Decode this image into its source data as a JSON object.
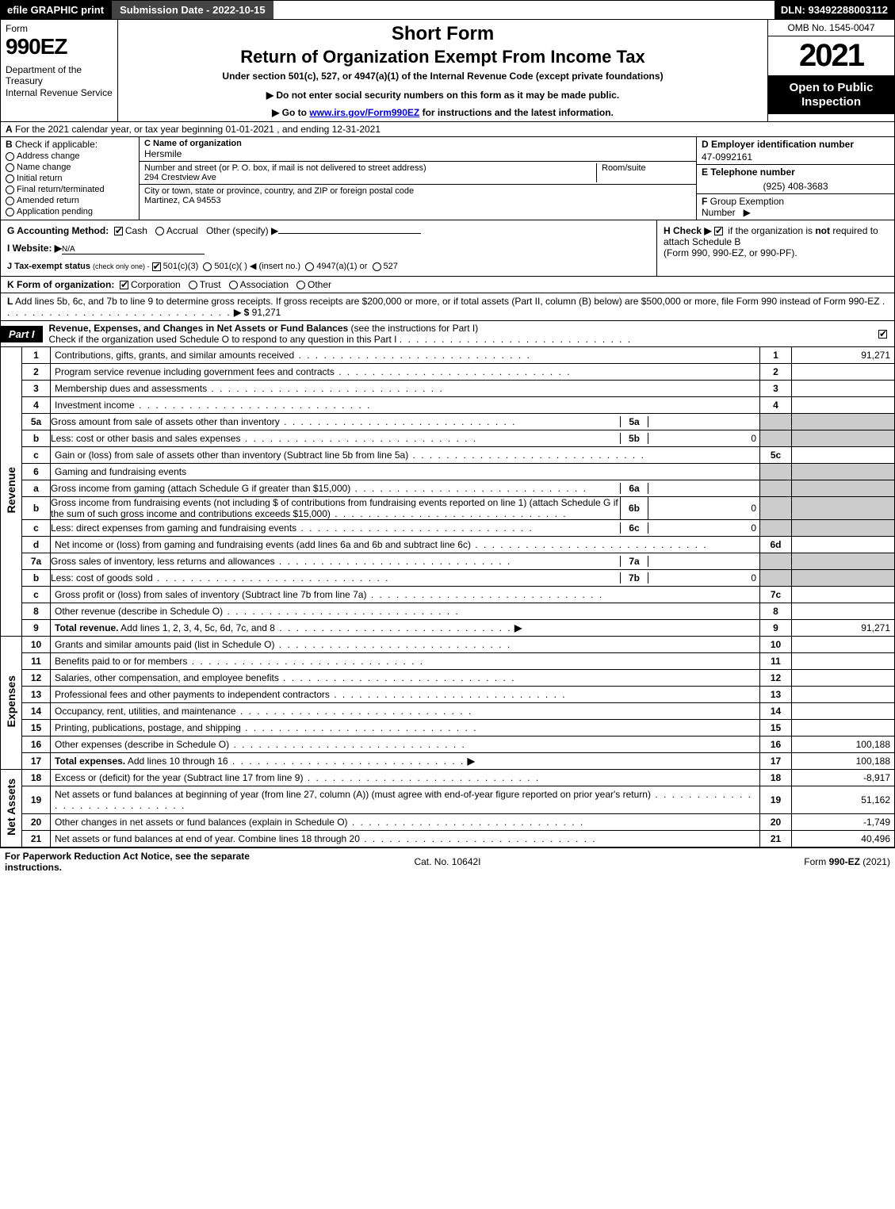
{
  "topbar": {
    "efile": "efile GRAPHIC print",
    "subdate_label": "Submission Date - 2022-10-15",
    "dln": "DLN: 93492288003112"
  },
  "header": {
    "form_word": "Form",
    "form_num": "990EZ",
    "dept": "Department of the Treasury\nInternal Revenue Service",
    "short": "Short Form",
    "title": "Return of Organization Exempt From Income Tax",
    "under": "Under section 501(c), 527, or 4947(a)(1) of the Internal Revenue Code (except private foundations)",
    "donot": "▶ Do not enter social security numbers on this form as it may be made public.",
    "goto_pre": "▶ Go to ",
    "goto_link": "www.irs.gov/Form990EZ",
    "goto_post": " for instructions and the latest information.",
    "omb": "OMB No. 1545-0047",
    "year": "2021",
    "open": "Open to Public Inspection"
  },
  "lineA": {
    "letter": "A",
    "text": "For the 2021 calendar year, or tax year beginning 01-01-2021 , and ending 12-31-2021"
  },
  "colB": {
    "letter": "B",
    "label": "Check if applicable:",
    "opts": {
      "addr": "Address change",
      "name": "Name change",
      "init": "Initial return",
      "final": "Final return/terminated",
      "amend": "Amended return",
      "app": "Application pending"
    }
  },
  "colC": {
    "name_label": "C Name of organization",
    "name": "Hersmile",
    "addr_label": "Number and street (or P. O. box, if mail is not delivered to street address)",
    "addr": "294 Crestview Ave",
    "room_label": "Room/suite",
    "city_label": "City or town, state or province, country, and ZIP or foreign postal code",
    "city": "Martinez, CA  94553"
  },
  "colDEF": {
    "d_label": "D Employer identification number",
    "ein": "47-0992161",
    "e_label": "E Telephone number",
    "phone": "(925) 408-3683",
    "f_label": "F Group Exemption Number  ▶"
  },
  "lineG": {
    "label": "G Accounting Method:",
    "cash": "Cash",
    "accrual": "Accrual",
    "other": "Other (specify) ▶"
  },
  "lineH": {
    "label": "H  Check ▶",
    "text1": "if the organization is ",
    "not": "not",
    "text2": " required to attach Schedule B",
    "text3": "(Form 990, 990-EZ, or 990-PF)."
  },
  "lineI": {
    "label": "I Website: ▶",
    "val": "N/A"
  },
  "lineJ": {
    "label": "J Tax-exempt status",
    "sub": "(check only one) -",
    "o1": "501(c)(3)",
    "o2": "501(c)(  ) ◀ (insert no.)",
    "o3": "4947(a)(1) or",
    "o4": "527"
  },
  "lineK": {
    "label": "K Form of organization:",
    "o1": "Corporation",
    "o2": "Trust",
    "o3": "Association",
    "o4": "Other"
  },
  "lineL": {
    "label": "L",
    "text": "Add lines 5b, 6c, and 7b to line 9 to determine gross receipts. If gross receipts are $200,000 or more, or if total assets (Part II, column (B) below) are $500,000 or more, file Form 990 instead of Form 990-EZ",
    "arrow": "▶ $",
    "val": "91,271"
  },
  "part1": {
    "tab": "Part I",
    "title": "Revenue, Expenses, and Changes in Net Assets or Fund Balances",
    "title_paren": "(see the instructions for Part I)",
    "check_line": "Check if the organization used Schedule O to respond to any question in this Part I"
  },
  "side_labels": {
    "revenue": "Revenue",
    "expenses": "Expenses",
    "netassets": "Net Assets"
  },
  "rows_revenue": [
    {
      "n": "1",
      "d": "Contributions, gifts, grants, and similar amounts received",
      "r": "1",
      "v": "91,271"
    },
    {
      "n": "2",
      "d": "Program service revenue including government fees and contracts",
      "r": "2",
      "v": ""
    },
    {
      "n": "3",
      "d": "Membership dues and assessments",
      "r": "3",
      "v": ""
    },
    {
      "n": "4",
      "d": "Investment income",
      "r": "4",
      "v": ""
    },
    {
      "n": "5a",
      "d": "Gross amount from sale of assets other than inventory",
      "ml": "5a",
      "mv": ""
    },
    {
      "n": "b",
      "d": "Less: cost or other basis and sales expenses",
      "ml": "5b",
      "mv": "0"
    },
    {
      "n": "c",
      "d": "Gain or (loss) from sale of assets other than inventory (Subtract line 5b from line 5a)",
      "r": "5c",
      "v": ""
    },
    {
      "n": "6",
      "d": "Gaming and fundraising events"
    },
    {
      "n": "a",
      "d": "Gross income from gaming (attach Schedule G if greater than $15,000)",
      "ml": "6a",
      "mv": ""
    },
    {
      "n": "b",
      "d": "Gross income from fundraising events (not including $                 of contributions from fundraising events reported on line 1) (attach Schedule G if the sum of such gross income and contributions exceeds $15,000)",
      "ml": "6b",
      "mv": "0"
    },
    {
      "n": "c",
      "d": "Less: direct expenses from gaming and fundraising events",
      "ml": "6c",
      "mv": "0"
    },
    {
      "n": "d",
      "d": "Net income or (loss) from gaming and fundraising events (add lines 6a and 6b and subtract line 6c)",
      "r": "6d",
      "v": ""
    },
    {
      "n": "7a",
      "d": "Gross sales of inventory, less returns and allowances",
      "ml": "7a",
      "mv": ""
    },
    {
      "n": "b",
      "d": "Less: cost of goods sold",
      "ml": "7b",
      "mv": "0"
    },
    {
      "n": "c",
      "d": "Gross profit or (loss) from sales of inventory (Subtract line 7b from line 7a)",
      "r": "7c",
      "v": ""
    },
    {
      "n": "8",
      "d": "Other revenue (describe in Schedule O)",
      "r": "8",
      "v": ""
    },
    {
      "n": "9",
      "d": "Total revenue. Add lines 1, 2, 3, 4, 5c, 6d, 7c, and 8",
      "r": "9",
      "v": "91,271",
      "bold": true,
      "arrow": true
    }
  ],
  "rows_expenses": [
    {
      "n": "10",
      "d": "Grants and similar amounts paid (list in Schedule O)",
      "r": "10",
      "v": ""
    },
    {
      "n": "11",
      "d": "Benefits paid to or for members",
      "r": "11",
      "v": ""
    },
    {
      "n": "12",
      "d": "Salaries, other compensation, and employee benefits",
      "r": "12",
      "v": ""
    },
    {
      "n": "13",
      "d": "Professional fees and other payments to independent contractors",
      "r": "13",
      "v": ""
    },
    {
      "n": "14",
      "d": "Occupancy, rent, utilities, and maintenance",
      "r": "14",
      "v": ""
    },
    {
      "n": "15",
      "d": "Printing, publications, postage, and shipping",
      "r": "15",
      "v": ""
    },
    {
      "n": "16",
      "d": "Other expenses (describe in Schedule O)",
      "r": "16",
      "v": "100,188"
    },
    {
      "n": "17",
      "d": "Total expenses. Add lines 10 through 16",
      "r": "17",
      "v": "100,188",
      "bold": true,
      "arrow": true
    }
  ],
  "rows_net": [
    {
      "n": "18",
      "d": "Excess or (deficit) for the year (Subtract line 17 from line 9)",
      "r": "18",
      "v": "-8,917"
    },
    {
      "n": "19",
      "d": "Net assets or fund balances at beginning of year (from line 27, column (A)) (must agree with end-of-year figure reported on prior year's return)",
      "r": "19",
      "v": "51,162"
    },
    {
      "n": "20",
      "d": "Other changes in net assets or fund balances (explain in Schedule O)",
      "r": "20",
      "v": "-1,749"
    },
    {
      "n": "21",
      "d": "Net assets or fund balances at end of year. Combine lines 18 through 20",
      "r": "21",
      "v": "40,496"
    }
  ],
  "footer": {
    "left": "For Paperwork Reduction Act Notice, see the separate instructions.",
    "mid": "Cat. No. 10642I",
    "right_pre": "Form ",
    "right_form": "990-EZ",
    "right_post": " (2021)"
  }
}
